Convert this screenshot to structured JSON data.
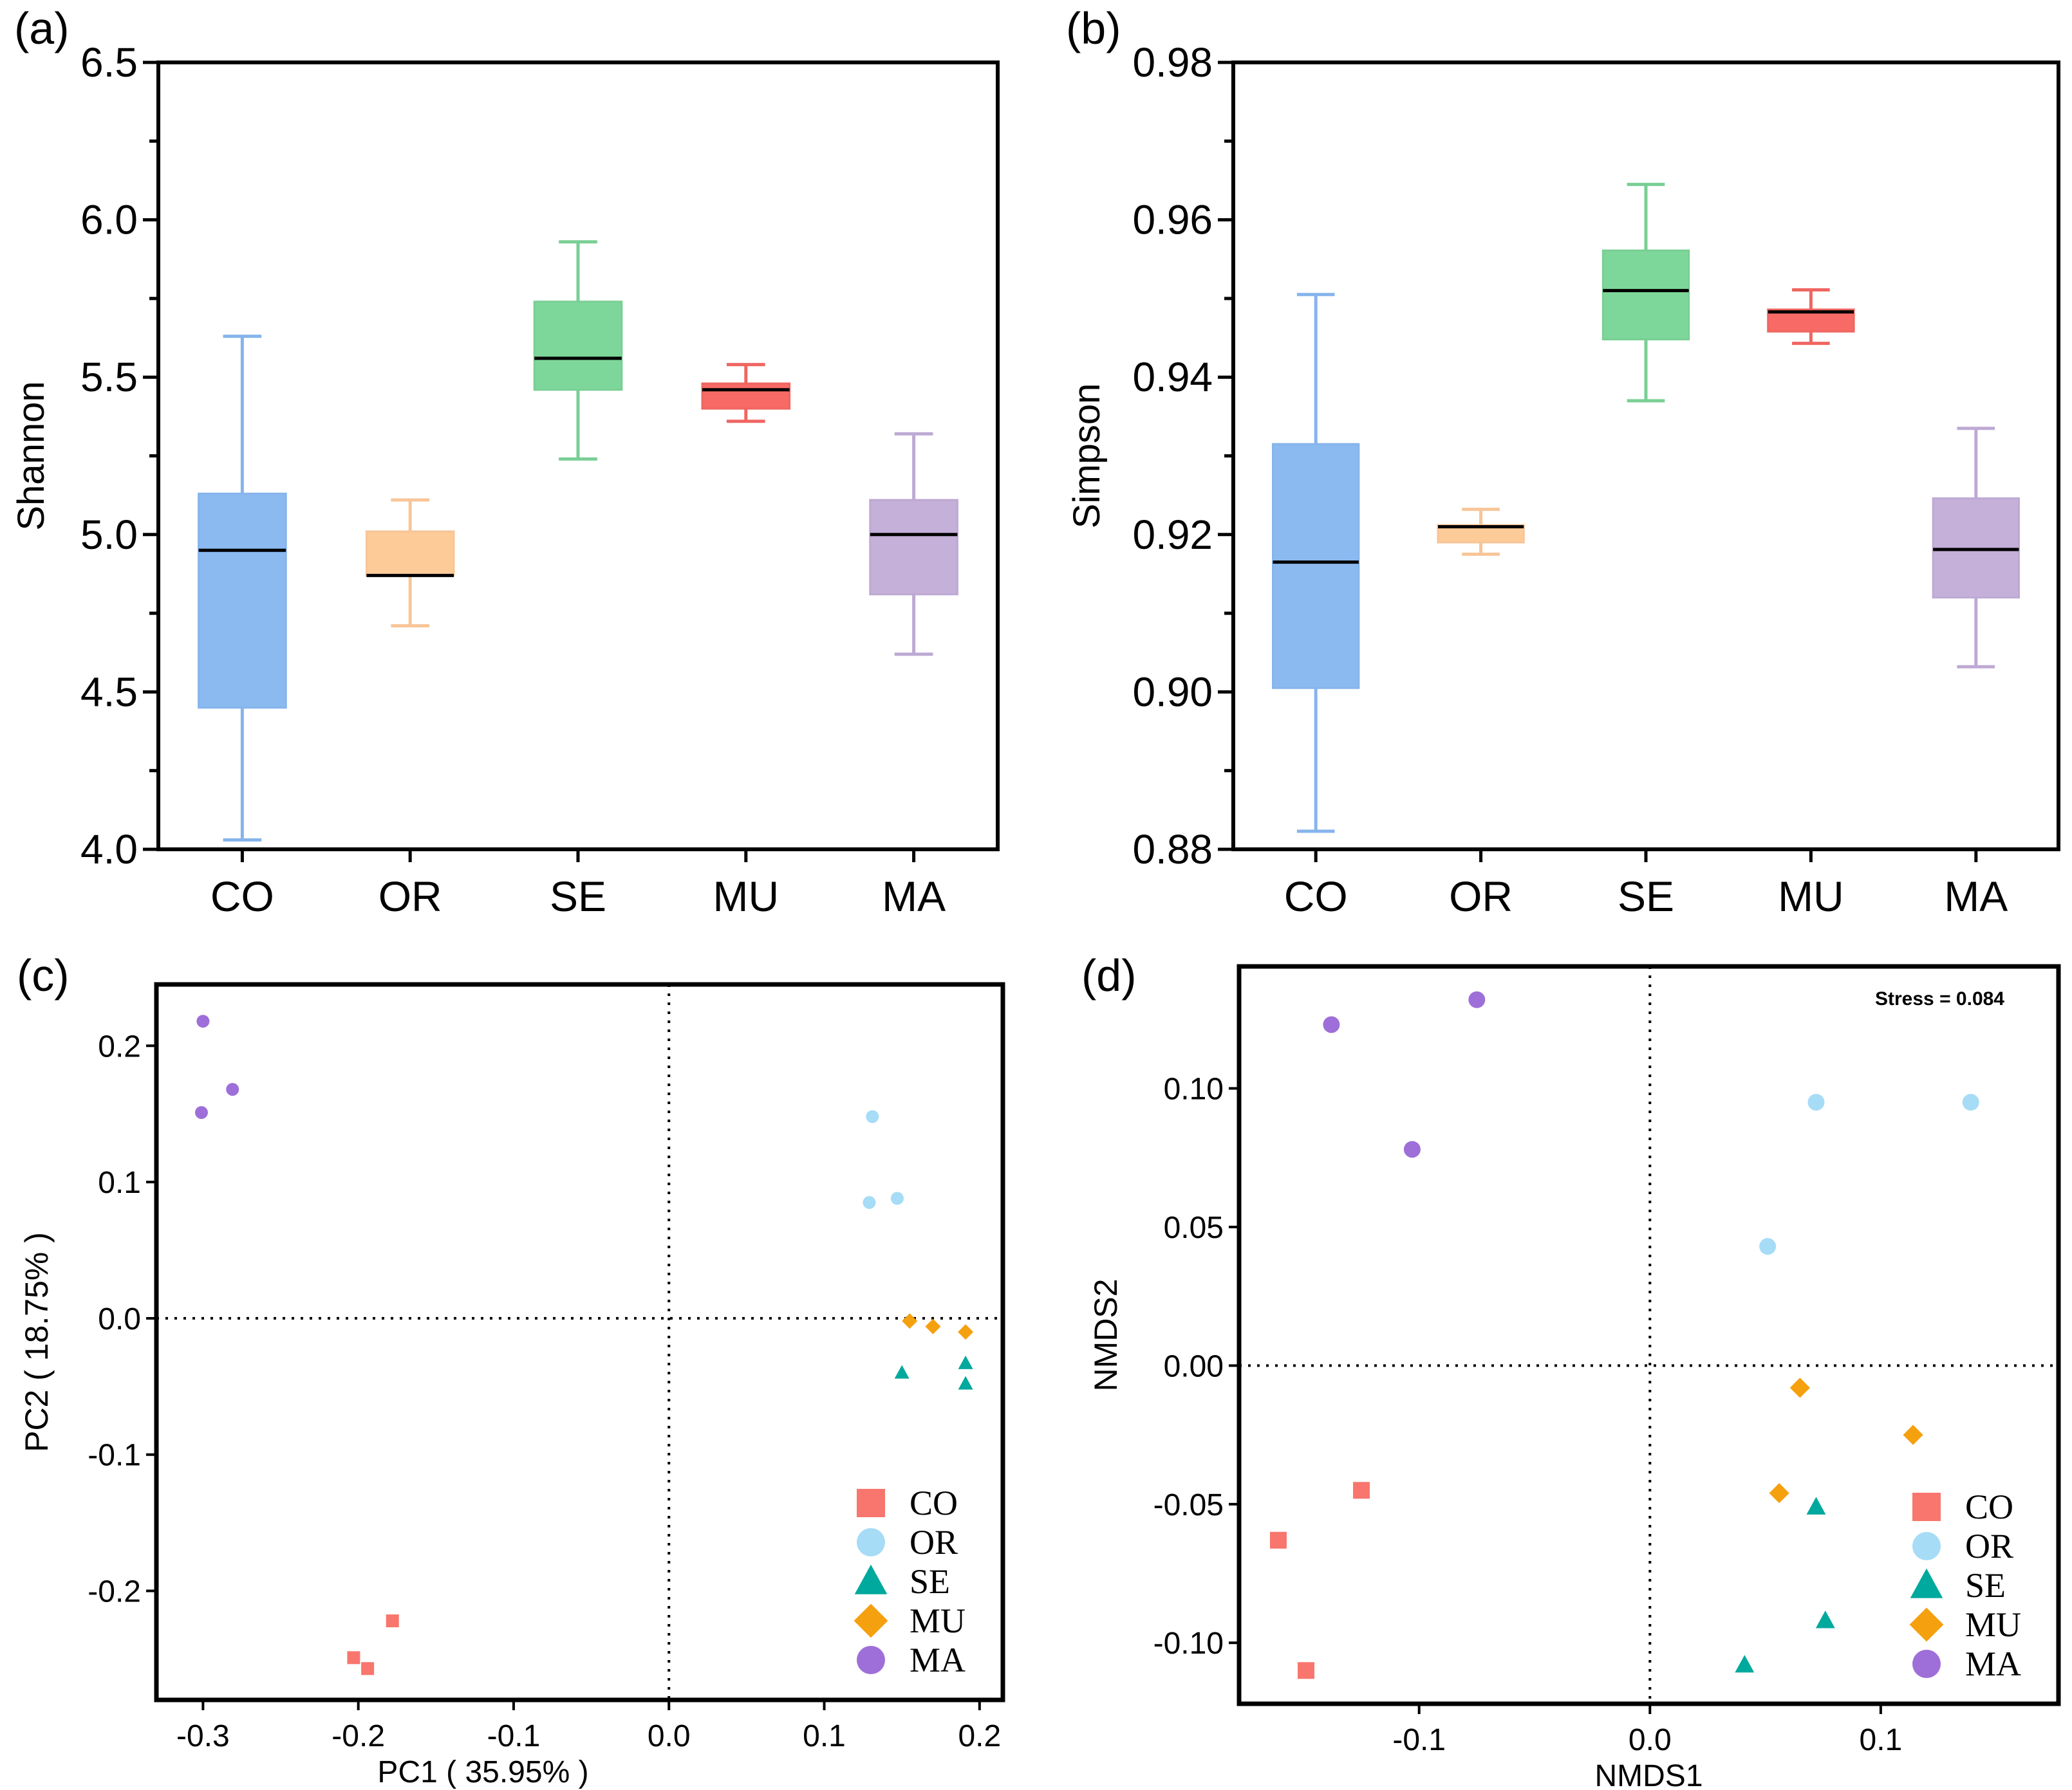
{
  "chart_data": [
    {
      "panel": "(a)",
      "type": "box",
      "ylabel": "Shannon",
      "xlabel": "",
      "categories": [
        "CO",
        "OR",
        "SE",
        "MU",
        "MA"
      ],
      "colors": [
        "#8bbaf1",
        "#fccb98",
        "#7ed79a",
        "#f76a66",
        "#c4b0d8"
      ],
      "whisker_colors": [
        "#86b4ec",
        "#f8c598",
        "#79cf94",
        "#ef6661",
        "#bea9d3"
      ],
      "boxes": [
        {
          "min": 4.03,
          "q1": 4.45,
          "median": 4.95,
          "q3": 5.13,
          "max": 5.63
        },
        {
          "min": 4.71,
          "q1": 4.87,
          "median": 4.87,
          "q3": 5.01,
          "max": 5.11
        },
        {
          "min": 5.24,
          "q1": 5.46,
          "median": 5.56,
          "q3": 5.74,
          "max": 5.93
        },
        {
          "min": 5.36,
          "q1": 5.4,
          "median": 5.46,
          "q3": 5.48,
          "max": 5.54
        },
        {
          "min": 4.62,
          "q1": 4.81,
          "median": 5.0,
          "q3": 5.11,
          "max": 5.32
        }
      ],
      "ylim": [
        4.0,
        6.5
      ],
      "yticks": [
        4.0,
        4.5,
        5.0,
        5.5,
        6.0,
        6.5
      ],
      "ytick_labels": [
        "4.0",
        "4.5",
        "5.0",
        "5.5",
        "6.0",
        "6.5"
      ],
      "grid": false
    },
    {
      "panel": "(b)",
      "type": "box",
      "ylabel": "Simpson",
      "xlabel": "",
      "categories": [
        "CO",
        "OR",
        "SE",
        "MU",
        "MA"
      ],
      "colors": [
        "#8bbaf1",
        "#fccb98",
        "#7ed79a",
        "#f76a66",
        "#c4b0d8"
      ],
      "whisker_colors": [
        "#86b4ec",
        "#f8c598",
        "#79cf94",
        "#ef6661",
        "#bea9d3"
      ],
      "boxes": [
        {
          "min": 0.8823,
          "q1": 0.9005,
          "median": 0.9165,
          "q3": 0.9315,
          "max": 0.9505
        },
        {
          "min": 0.9175,
          "q1": 0.919,
          "median": 0.921,
          "q3": 0.9212,
          "max": 0.9232
        },
        {
          "min": 0.937,
          "q1": 0.9448,
          "median": 0.951,
          "q3": 0.9561,
          "max": 0.9645
        },
        {
          "min": 0.9443,
          "q1": 0.9458,
          "median": 0.9483,
          "q3": 0.9486,
          "max": 0.9511
        },
        {
          "min": 0.9032,
          "q1": 0.912,
          "median": 0.9181,
          "q3": 0.9246,
          "max": 0.9335
        }
      ],
      "ylim": [
        0.88,
        0.98
      ],
      "yticks": [
        0.88,
        0.9,
        0.92,
        0.94,
        0.96,
        0.98
      ],
      "ytick_labels": [
        "0.88",
        "0.90",
        "0.92",
        "0.94",
        "0.96",
        "0.98"
      ],
      "grid": false
    },
    {
      "panel": "(c)",
      "type": "scatter",
      "xlabel": "PC1 ( 35.95% )",
      "ylabel": "PC2 ( 18.75% )",
      "xlim": [
        -0.33,
        0.215
      ],
      "ylim": [
        -0.28,
        0.245
      ],
      "xticks": [
        -0.3,
        -0.2,
        -0.1,
        0.0,
        0.1,
        0.2
      ],
      "xtick_labels": [
        "-0.3",
        "-0.2",
        "-0.1",
        "0.0",
        "0.1",
        "0.2"
      ],
      "yticks": [
        -0.2,
        -0.1,
        0.0,
        0.1,
        0.2
      ],
      "ytick_labels": [
        "-0.2",
        "-0.1",
        "0.0",
        "0.1",
        "0.2"
      ],
      "series": [
        {
          "name": "CO",
          "marker": "square",
          "color": "#f8766d",
          "points": [
            [
              -0.178,
              -0.222
            ],
            [
              -0.203,
              -0.249
            ],
            [
              -0.194,
              -0.257
            ]
          ]
        },
        {
          "name": "OR",
          "marker": "circle",
          "color": "#a6dcf6",
          "points": [
            [
              0.131,
              0.148
            ],
            [
              0.147,
              0.088
            ],
            [
              0.129,
              0.085
            ]
          ]
        },
        {
          "name": "SE",
          "marker": "triangle",
          "color": "#00a99d",
          "points": [
            [
              0.15,
              -0.04
            ],
            [
              0.191,
              -0.033
            ],
            [
              0.191,
              -0.048
            ]
          ]
        },
        {
          "name": "MU",
          "marker": "diamond",
          "color": "#f5a00f",
          "points": [
            [
              0.155,
              -0.002
            ],
            [
              0.17,
              -0.006
            ],
            [
              0.191,
              -0.01
            ]
          ]
        },
        {
          "name": "MA",
          "marker": "circle",
          "color": "#9e6fd8",
          "points": [
            [
              -0.3,
              0.218
            ],
            [
              -0.281,
              0.168
            ],
            [
              -0.301,
              0.151
            ]
          ]
        }
      ],
      "legend_position": "bottom-right",
      "reference_lines": "dotted at x=0 and y=0",
      "grid": false
    },
    {
      "panel": "(d)",
      "type": "scatter",
      "xlabel": "NMDS1",
      "ylabel": "NMDS2",
      "annotation": "Stress = 0.084",
      "xlim": [
        -0.178,
        0.177
      ],
      "ylim": [
        -0.122,
        0.144
      ],
      "xticks": [
        -0.1,
        0.0,
        0.1
      ],
      "xtick_labels": [
        "-0.1",
        "0.0",
        "0.1"
      ],
      "yticks": [
        -0.1,
        -0.05,
        0.0,
        0.05,
        0.1
      ],
      "ytick_labels": [
        "-0.10",
        "-0.05",
        "0.00",
        "0.05",
        "0.10"
      ],
      "series": [
        {
          "name": "CO",
          "marker": "square",
          "color": "#f8766d",
          "points": [
            [
              -0.125,
              -0.045
            ],
            [
              -0.161,
              -0.063
            ],
            [
              -0.149,
              -0.11
            ]
          ]
        },
        {
          "name": "OR",
          "marker": "circle",
          "color": "#a6dcf6",
          "points": [
            [
              0.072,
              0.095
            ],
            [
              0.139,
              0.095
            ],
            [
              0.051,
              0.043
            ]
          ]
        },
        {
          "name": "SE",
          "marker": "triangle",
          "color": "#00a99d",
          "points": [
            [
              0.072,
              -0.051
            ],
            [
              0.076,
              -0.092
            ],
            [
              0.041,
              -0.108
            ]
          ]
        },
        {
          "name": "MU",
          "marker": "diamond",
          "color": "#f5a00f",
          "points": [
            [
              0.065,
              -0.008
            ],
            [
              0.114,
              -0.025
            ],
            [
              0.056,
              -0.046
            ]
          ]
        },
        {
          "name": "MA",
          "marker": "circle",
          "color": "#9e6fd8",
          "points": [
            [
              -0.138,
              0.123
            ],
            [
              -0.075,
              0.132
            ],
            [
              -0.103,
              0.078
            ]
          ]
        }
      ],
      "legend_position": "bottom-right",
      "reference_lines": "dotted at x=0 and y=0",
      "grid": false
    }
  ]
}
